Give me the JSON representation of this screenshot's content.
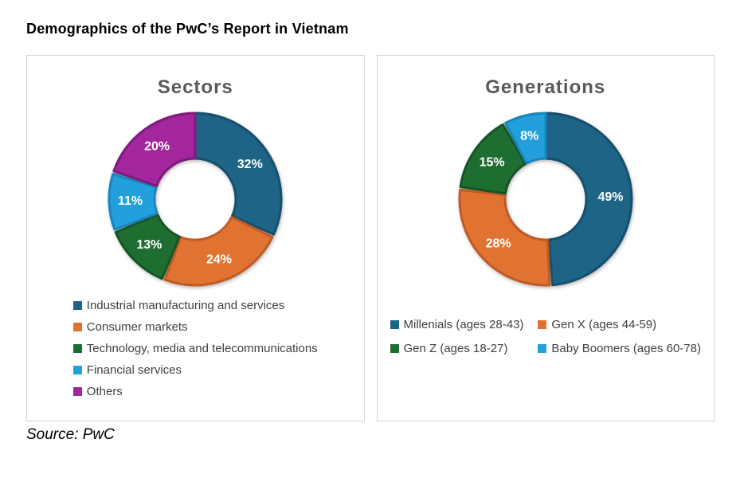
{
  "page": {
    "title": "Demographics of the PwC’s Report in Vietnam",
    "source": "Source: PwC"
  },
  "style": {
    "panel_border_color": "#d6d6d6",
    "chart_title_color": "#595959",
    "legend_text_color": "#404040",
    "slice_label_color": "#ffffff"
  },
  "chart_data": [
    {
      "type": "pie",
      "subtype": "donut",
      "title": "Sectors",
      "categories": [
        "Industrial manufacturing and services",
        "Consumer markets",
        "Technology, media and telecommunications",
        "Financial services",
        "Others"
      ],
      "values": [
        32,
        24,
        13,
        11,
        20
      ],
      "labels": [
        "32%",
        "24%",
        "13%",
        "11%",
        "20%"
      ],
      "colors": [
        "#1D6487",
        "#E17332",
        "#1F6E31",
        "#23A0DB",
        "#A3269E"
      ],
      "border_colors": [
        "#164F6C",
        "#BE5B24",
        "#175425",
        "#1786BD",
        "#7E1A7B"
      ],
      "hole": 0.47,
      "start_angle": 0,
      "direction": "clockwise",
      "legend_position": "bottom",
      "legend_layout": "single-column"
    },
    {
      "type": "pie",
      "subtype": "donut",
      "title": "Generations",
      "categories": [
        "Millenials (ages 28-43)",
        "Gen X (ages 44-59)",
        "Gen Z (ages 18-27)",
        "Baby Boomers (ages 60-78)"
      ],
      "values": [
        49,
        28,
        15,
        8
      ],
      "labels": [
        "49%",
        "28%",
        "15%",
        "8%"
      ],
      "colors": [
        "#1D6487",
        "#E17332",
        "#1F6E31",
        "#23A0DB"
      ],
      "border_colors": [
        "#164F6C",
        "#BE5B24",
        "#175425",
        "#1786BD"
      ],
      "hole": 0.47,
      "start_angle": 0,
      "direction": "clockwise",
      "legend_position": "bottom",
      "legend_layout": "two-column"
    }
  ]
}
